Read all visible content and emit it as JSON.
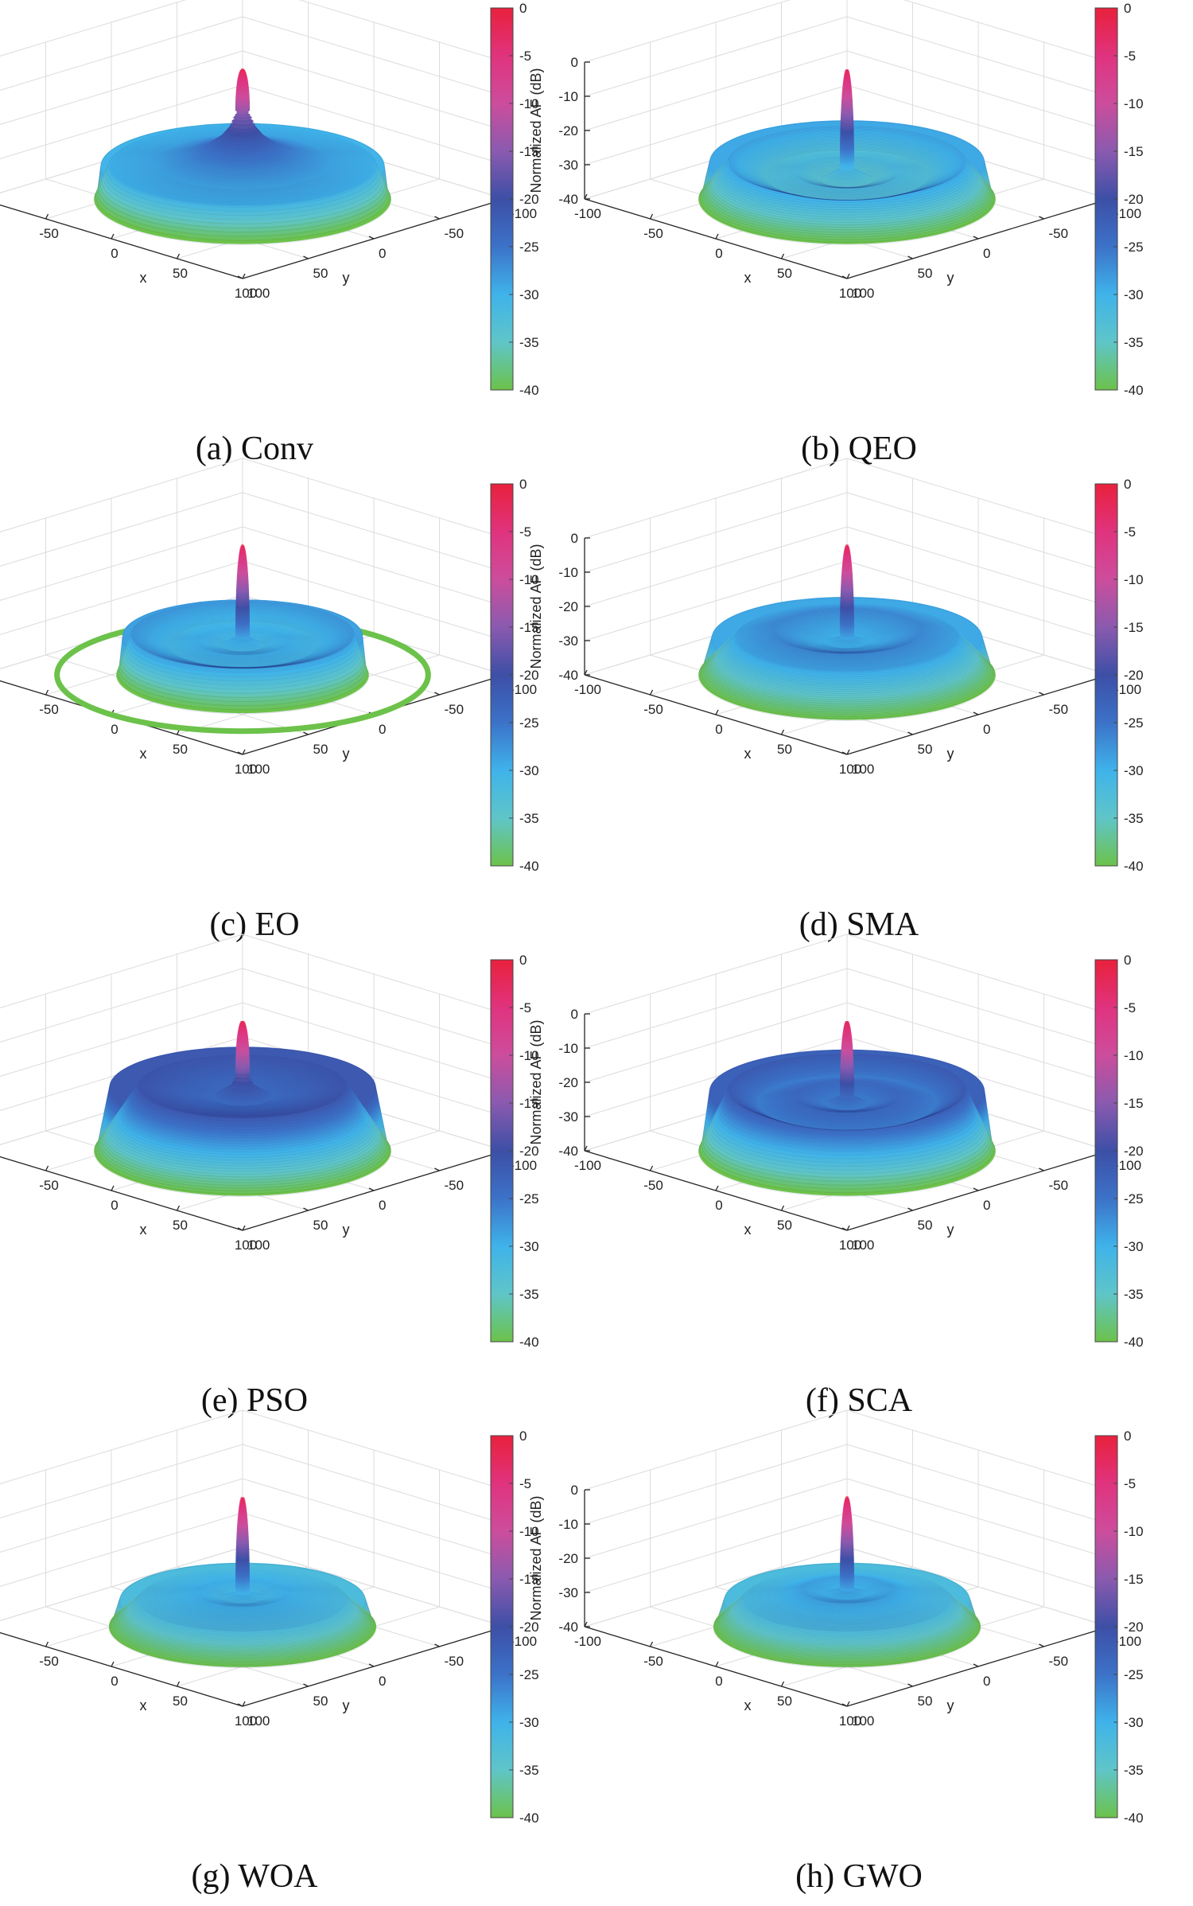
{
  "colormap": {
    "stops": [
      {
        "value": 0,
        "color": "#e8213c"
      },
      {
        "value": -5,
        "color": "#e0337e"
      },
      {
        "value": -10,
        "color": "#cc4d9c"
      },
      {
        "value": -15,
        "color": "#8a5aaf"
      },
      {
        "value": -20,
        "color": "#3d4fa6"
      },
      {
        "value": -25,
        "color": "#3c72c8"
      },
      {
        "value": -30,
        "color": "#3fb3ea"
      },
      {
        "value": -35,
        "color": "#5fc5c8"
      },
      {
        "value": -40,
        "color": "#6cc24a"
      }
    ],
    "ticks": [
      "0",
      "-5",
      "-10",
      "-15",
      "-20",
      "-25",
      "-30",
      "-35",
      "-40"
    ]
  },
  "axes": {
    "zlabel": "Normalized AF (dB)",
    "xlabel": "x",
    "ylabel": "y",
    "z_ticks": [
      "0",
      "-10",
      "-20",
      "-30",
      "-40"
    ],
    "x_ticks": [
      "-100",
      "-50",
      "0",
      "50",
      "100"
    ],
    "y_ticks": [
      "100",
      "50",
      "0",
      "-50",
      "-100"
    ]
  },
  "chart_data": [
    {
      "type": "surface3d",
      "id": "a",
      "caption": "(a) Conv",
      "zlabel": "Normalized AF (dB)",
      "xlabel": "x",
      "ylabel": "y",
      "zlim": [
        -40,
        0
      ],
      "xlim": [
        -100,
        100
      ],
      "ylim": [
        -100,
        100
      ],
      "peak_db": -2,
      "base_db": -40,
      "profile": [
        {
          "r": 0,
          "z": -2
        },
        {
          "r": 3,
          "z": -14
        },
        {
          "r": 6,
          "z": -16
        },
        {
          "r": 9,
          "z": -19
        },
        {
          "r": 15,
          "z": -22
        },
        {
          "r": 25,
          "z": -25
        },
        {
          "r": 40,
          "z": -27
        },
        {
          "r": 60,
          "z": -29
        },
        {
          "r": 90,
          "z": -30
        },
        {
          "r": 100,
          "z": -40
        }
      ],
      "ring": null
    },
    {
      "type": "surface3d",
      "id": "b",
      "caption": "(b) QEO",
      "zlabel": "Normalized AF (dB)",
      "xlabel": "x",
      "ylabel": "y",
      "zlim": [
        -40,
        0
      ],
      "xlim": [
        -100,
        100
      ],
      "ylim": [
        -100,
        100
      ],
      "peak_db": -2,
      "base_db": -40,
      "profile": [
        {
          "r": 0,
          "z": -2
        },
        {
          "r": 4,
          "z": -31
        },
        {
          "r": 18,
          "z": -34
        },
        {
          "r": 35,
          "z": -32
        },
        {
          "r": 55,
          "z": -33
        },
        {
          "r": 80,
          "z": -29
        },
        {
          "r": 100,
          "z": -40
        }
      ],
      "ring": null
    },
    {
      "type": "surface3d",
      "id": "c",
      "caption": "(c) EO",
      "zlabel": "Normalized AF (dB)",
      "xlabel": "x",
      "ylabel": "y",
      "zlim": [
        -40,
        0
      ],
      "xlim": [
        -100,
        100
      ],
      "ylim": [
        -100,
        100
      ],
      "peak_db": -2,
      "base_db": -40,
      "profile": [
        {
          "r": 0,
          "z": -2
        },
        {
          "r": 4,
          "z": -29
        },
        {
          "r": 15,
          "z": -31
        },
        {
          "r": 30,
          "z": -30
        },
        {
          "r": 50,
          "z": -31
        },
        {
          "r": 75,
          "z": -28
        },
        {
          "r": 85,
          "z": -40
        }
      ],
      "ring": {
        "r": 100,
        "z": -40
      }
    },
    {
      "type": "surface3d",
      "id": "d",
      "caption": "(d) SMA",
      "zlabel": "Normalized AF (dB)",
      "xlabel": "x",
      "ylabel": "y",
      "zlim": [
        -40,
        0
      ],
      "xlim": [
        -100,
        100
      ],
      "ylim": [
        -100,
        100
      ],
      "peak_db": -2,
      "base_db": -40,
      "profile": [
        {
          "r": 0,
          "z": -2
        },
        {
          "r": 4,
          "z": -29
        },
        {
          "r": 15,
          "z": -30
        },
        {
          "r": 30,
          "z": -29
        },
        {
          "r": 50,
          "z": -27
        },
        {
          "r": 75,
          "z": -29
        },
        {
          "r": 100,
          "z": -40
        }
      ],
      "ring": null
    },
    {
      "type": "surface3d",
      "id": "e",
      "caption": "(e) PSO",
      "zlabel": "Normalized AF (dB)",
      "xlabel": "x",
      "ylabel": "y",
      "zlim": [
        -40,
        0
      ],
      "xlim": [
        -100,
        100
      ],
      "ylim": [
        -100,
        100
      ],
      "peak_db": -2,
      "base_db": -40,
      "profile": [
        {
          "r": 0,
          "z": -2
        },
        {
          "r": 4,
          "z": -17
        },
        {
          "r": 8,
          "z": -21
        },
        {
          "r": 20,
          "z": -24
        },
        {
          "r": 40,
          "z": -23
        },
        {
          "r": 70,
          "z": -21
        },
        {
          "r": 100,
          "z": -40
        }
      ],
      "ring": null
    },
    {
      "type": "surface3d",
      "id": "f",
      "caption": "(f) SCA",
      "zlabel": "Normalized AF (dB)",
      "xlabel": "x",
      "ylabel": "y",
      "zlim": [
        -40,
        0
      ],
      "xlim": [
        -100,
        100
      ],
      "ylim": [
        -100,
        100
      ],
      "peak_db": -2,
      "base_db": -40,
      "profile": [
        {
          "r": 0,
          "z": -2
        },
        {
          "r": 4,
          "z": -24
        },
        {
          "r": 15,
          "z": -26
        },
        {
          "r": 35,
          "z": -24
        },
        {
          "r": 60,
          "z": -26
        },
        {
          "r": 80,
          "z": -22
        },
        {
          "r": 100,
          "z": -40
        }
      ],
      "ring": null
    },
    {
      "type": "surface3d",
      "id": "g",
      "caption": "(g) WOA",
      "zlabel": "Normalized AF (dB)",
      "xlabel": "x",
      "ylabel": "y",
      "zlim": [
        -40,
        0
      ],
      "xlim": [
        -100,
        100
      ],
      "ylim": [
        -100,
        100
      ],
      "peak_db": -2,
      "base_db": -40,
      "profile": [
        {
          "r": 0,
          "z": -2
        },
        {
          "r": 4,
          "z": -30
        },
        {
          "r": 15,
          "z": -31
        },
        {
          "r": 30,
          "z": -30
        },
        {
          "r": 50,
          "z": -31
        },
        {
          "r": 70,
          "z": -32
        },
        {
          "r": 90,
          "z": -40
        }
      ],
      "ring": null
    },
    {
      "type": "surface3d",
      "id": "h",
      "caption": "(h) GWO",
      "zlabel": "Normalized AF (dB)",
      "xlabel": "x",
      "ylabel": "y",
      "zlim": [
        -40,
        0
      ],
      "xlim": [
        -100,
        100
      ],
      "ylim": [
        -100,
        100
      ],
      "peak_db": -2,
      "base_db": -40,
      "profile": [
        {
          "r": 0,
          "z": -2
        },
        {
          "r": 4,
          "z": -29
        },
        {
          "r": 15,
          "z": -30
        },
        {
          "r": 30,
          "z": -29
        },
        {
          "r": 50,
          "z": -31
        },
        {
          "r": 70,
          "z": -32
        },
        {
          "r": 90,
          "z": -40
        }
      ],
      "ring": null
    }
  ]
}
